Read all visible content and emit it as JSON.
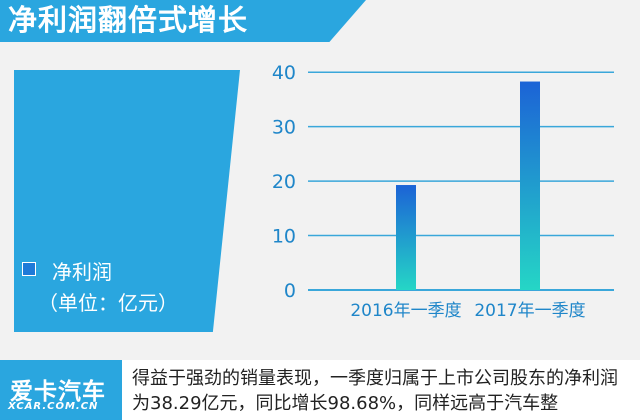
{
  "header": {
    "title": "净利润翻倍式增长"
  },
  "legend": {
    "label": "净利润",
    "unit": "（单位：亿元）",
    "swatch_color": "#1e7ad8"
  },
  "chart_data": {
    "type": "bar",
    "categories": [
      "2016年一季度",
      "2017年一季度"
    ],
    "values": [
      19.28,
      38.29
    ],
    "title": "",
    "xlabel": "",
    "ylabel": "",
    "ylim": [
      0,
      45
    ],
    "yticks": [
      0,
      10,
      20,
      30,
      40
    ],
    "grid": true,
    "legend_position": "left",
    "colors": {
      "bar_top": "#1c63d6",
      "bar_bottom": "#25d6c6",
      "grid": "#3aa7da",
      "tick_text": "#1f86c9"
    }
  },
  "footer": {
    "brand": "爱卡汽车",
    "brand_sub": "XCAR.COM.CN",
    "text": "得益于强劲的销量表现，一季度归属于上市公司股东的净利润为38.29亿元，同比增长98.68%，同样远高于汽车整"
  }
}
